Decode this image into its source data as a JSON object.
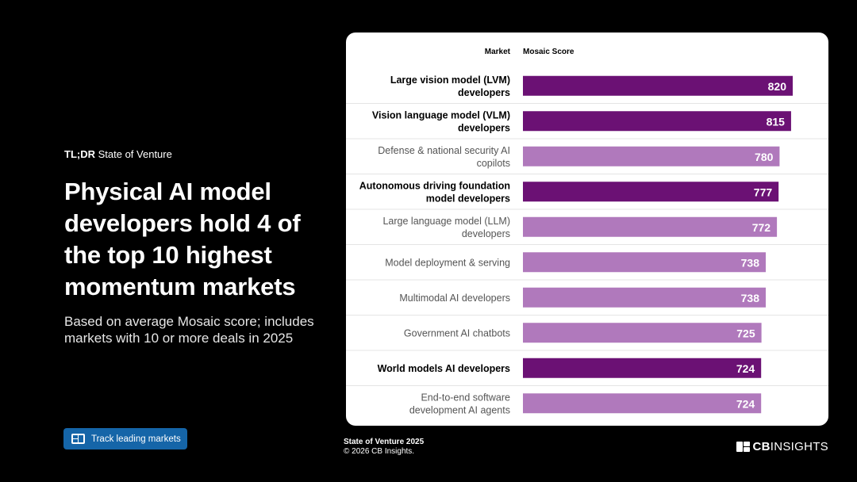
{
  "kicker": {
    "bold": "TL;DR",
    "rest": " State of Venture"
  },
  "headline": "Physical AI model developers hold 4 of the top 10 highest momentum markets",
  "subtitle": "Based on average Mosaic score; includes markets with 10 or more deals in 2025",
  "cta": {
    "label": "Track leading markets",
    "icon": "dashboard-icon"
  },
  "footer": {
    "line1": "State of Venture 2025",
    "line2": "© 2026 CB Insights."
  },
  "brand": {
    "bold": "CB",
    "rest": "INSIGHTS",
    "icon": "cb-logo-icon"
  },
  "colors": {
    "highlight": "#6b1174",
    "normal": "#b079bc",
    "card": "#ffffff",
    "button": "#1565a8"
  },
  "chart_data": {
    "type": "bar",
    "orientation": "horizontal",
    "column_headers": {
      "market": "Market",
      "score": "Mosaic Score"
    },
    "xlim": [
      0,
      820
    ],
    "bars": [
      {
        "lines": [
          "Large vision model (LVM)",
          "developers"
        ],
        "value": 820,
        "label": "820",
        "highlight": true
      },
      {
        "lines": [
          "Vision language model (VLM)",
          "developers"
        ],
        "value": 815,
        "label": "815",
        "highlight": true
      },
      {
        "lines": [
          "Defense & national security AI",
          "copilots"
        ],
        "value": 780,
        "label": "780",
        "highlight": false
      },
      {
        "lines": [
          "Autonomous driving foundation",
          "model developers"
        ],
        "value": 777,
        "label": "777",
        "highlight": true
      },
      {
        "lines": [
          "Large language model (LLM)",
          "developers"
        ],
        "value": 772,
        "label": "772",
        "highlight": false
      },
      {
        "lines": [
          "Model deployment & serving"
        ],
        "value": 738,
        "label": "738",
        "highlight": false
      },
      {
        "lines": [
          "Multimodal AI developers"
        ],
        "value": 738,
        "label": "738",
        "highlight": false
      },
      {
        "lines": [
          "Government AI chatbots"
        ],
        "value": 725,
        "label": "725",
        "highlight": false
      },
      {
        "lines": [
          "World models AI developers"
        ],
        "value": 724,
        "label": "724",
        "highlight": true
      },
      {
        "lines": [
          "End-to-end software",
          "development AI agents"
        ],
        "value": 724,
        "label": "724",
        "highlight": false
      }
    ]
  }
}
